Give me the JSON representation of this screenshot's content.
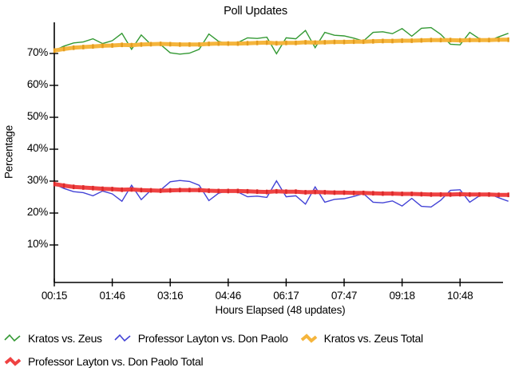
{
  "title": "Poll Updates",
  "x_axis": {
    "label": "Hours Elapsed (48 updates)",
    "tick_labels": [
      "00:15",
      "01:46",
      "03:16",
      "04:46",
      "06:17",
      "07:47",
      "09:18",
      "10:48"
    ]
  },
  "y_axis": {
    "label": "Percentage",
    "tick_labels": [
      "10%",
      "20%",
      "30%",
      "40%",
      "50%",
      "60%",
      "70%"
    ]
  },
  "legend": {
    "items": [
      {
        "label": "Kratos vs. Zeus",
        "color": "#339933",
        "thick": false
      },
      {
        "label": "Professor Layton vs. Don Paolo",
        "color": "#4343d6",
        "thick": false
      },
      {
        "label": "Kratos vs. Zeus Total",
        "color": "#f5b53c",
        "thick": true
      },
      {
        "label": "Professor Layton vs. Don Paolo Total",
        "color": "#ef4242",
        "thick": true
      }
    ]
  },
  "chart_data": {
    "type": "line",
    "title": "Poll Updates",
    "xlabel": "Hours Elapsed (48 updates)",
    "ylabel": "Percentage",
    "n_points": 48,
    "grid": false,
    "legend_position": "bottom",
    "ylim": [
      0,
      80
    ],
    "y_ticks": [
      10,
      20,
      30,
      40,
      50,
      60,
      70
    ],
    "y_tick_labels": [
      "10%",
      "20%",
      "30%",
      "40%",
      "50%",
      "60%",
      "70%"
    ],
    "x_tick_indices": [
      0,
      6,
      12,
      18,
      24,
      30,
      36,
      42
    ],
    "x_tick_labels": [
      "00:15",
      "01:46",
      "03:16",
      "04:46",
      "06:17",
      "07:47",
      "09:18",
      "10:48"
    ],
    "series": [
      {
        "name": "Kratos vs. Zeus",
        "color": "#339933",
        "width": 1.4,
        "values": [
          70.9,
          72.3,
          73.3,
          73.6,
          74.6,
          73.1,
          74.0,
          76.3,
          71.3,
          75.8,
          72.8,
          72.8,
          70.2,
          69.8,
          70.1,
          71.3,
          76.1,
          73.8,
          73.0,
          73.4,
          74.9,
          74.7,
          75.1,
          69.9,
          74.9,
          74.6,
          77.2,
          71.8,
          76.6,
          75.7,
          75.5,
          74.8,
          73.9,
          76.6,
          76.8,
          76.2,
          77.8,
          75.4,
          77.9,
          78.1,
          76.0,
          72.9,
          72.7,
          76.6,
          74.6,
          74.0,
          75.2,
          76.3
        ]
      },
      {
        "name": "Professor Layton vs. Don Paolo",
        "color": "#4343d6",
        "width": 1.4,
        "values": [
          29.1,
          27.7,
          26.7,
          26.4,
          25.4,
          26.9,
          26.0,
          23.7,
          28.7,
          24.2,
          27.2,
          27.2,
          29.8,
          30.2,
          29.9,
          28.7,
          23.9,
          26.2,
          27.0,
          26.6,
          25.1,
          25.3,
          24.9,
          30.1,
          25.1,
          25.4,
          22.8,
          28.2,
          23.4,
          24.3,
          24.5,
          25.2,
          26.1,
          23.4,
          23.2,
          23.8,
          22.2,
          24.6,
          22.1,
          21.9,
          24.0,
          27.1,
          27.3,
          23.4,
          25.4,
          26.0,
          24.8,
          23.7
        ]
      },
      {
        "name": "Kratos vs. Zeus Total",
        "color": "#f5b53c",
        "accent": "#e39c20",
        "width": 5,
        "values": [
          70.9,
          71.4,
          71.8,
          72.0,
          72.2,
          72.4,
          72.5,
          72.7,
          72.6,
          72.8,
          72.9,
          73.0,
          72.9,
          72.8,
          72.8,
          72.8,
          73.0,
          73.1,
          73.1,
          73.1,
          73.2,
          73.3,
          73.4,
          73.2,
          73.3,
          73.3,
          73.5,
          73.4,
          73.5,
          73.6,
          73.6,
          73.7,
          73.7,
          73.8,
          73.9,
          73.9,
          74.0,
          74.0,
          74.1,
          74.2,
          74.2,
          74.2,
          74.1,
          74.2,
          74.2,
          74.2,
          74.3,
          74.3
        ]
      },
      {
        "name": "Professor Layton vs. Don Paolo Total",
        "color": "#ef4242",
        "accent": "#da2a2a",
        "width": 5,
        "values": [
          29.1,
          28.6,
          28.2,
          28.0,
          27.8,
          27.6,
          27.5,
          27.3,
          27.4,
          27.2,
          27.1,
          27.0,
          27.1,
          27.2,
          27.2,
          27.2,
          27.0,
          26.9,
          26.9,
          26.9,
          26.8,
          26.7,
          26.6,
          26.8,
          26.7,
          26.7,
          26.5,
          26.6,
          26.5,
          26.4,
          26.4,
          26.3,
          26.3,
          26.2,
          26.1,
          26.1,
          26.0,
          26.0,
          25.9,
          25.8,
          25.8,
          25.8,
          25.9,
          25.8,
          25.8,
          25.8,
          25.7,
          25.7
        ]
      }
    ]
  }
}
